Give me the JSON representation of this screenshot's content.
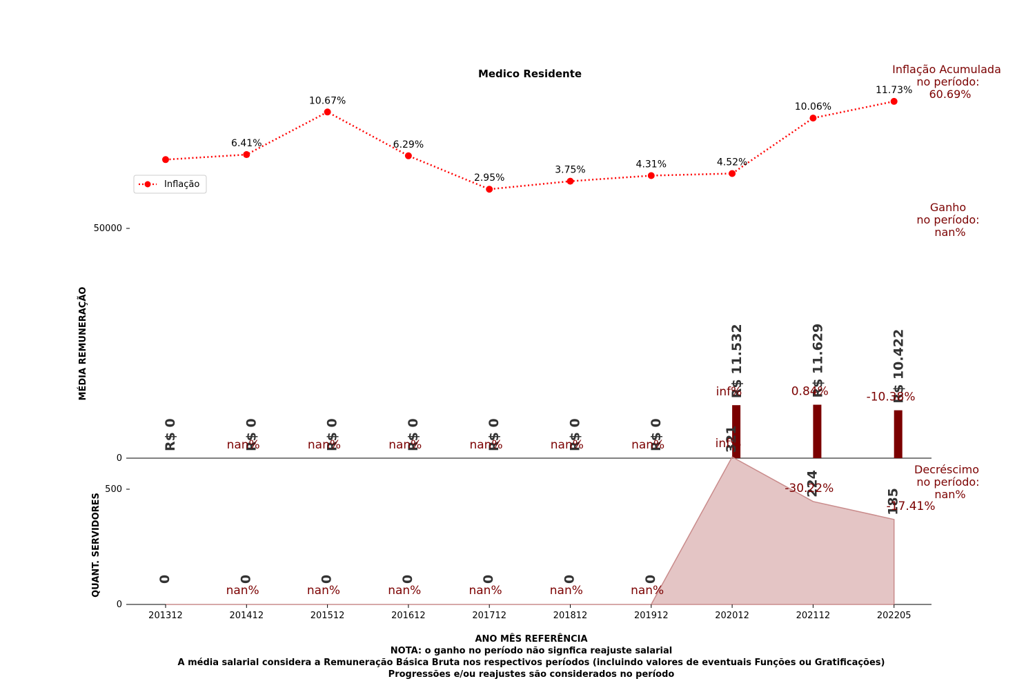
{
  "chart_data": {
    "type": "bar",
    "title": "Medico Residente",
    "categories": [
      "201312",
      "201412",
      "201512",
      "201612",
      "201712",
      "201812",
      "201912",
      "202012",
      "202112",
      "202205"
    ],
    "inflation": {
      "name": "Inflação",
      "style": "dotted-line-with-markers",
      "color": "#ff0000",
      "values": [
        5.91,
        6.41,
        10.67,
        6.29,
        2.95,
        3.75,
        4.31,
        4.52,
        10.06,
        11.73
      ],
      "labels": [
        "",
        "6.41%",
        "10.67%",
        "6.29%",
        "2.95%",
        "3.75%",
        "4.31%",
        "4.52%",
        "10.06%",
        "11.73%"
      ],
      "legend_placement": "left"
    },
    "remuneration": {
      "ylabel": "MÉDIA REMUNERAÇÃO",
      "ylim": [
        0,
        50000
      ],
      "yticks": [
        "0",
        "50000"
      ],
      "bar_color": "#7b0000",
      "values": [
        0,
        0,
        0,
        0,
        0,
        0,
        0,
        11532,
        11629,
        10422
      ],
      "value_labels": [
        "R$ 0",
        "R$ 0",
        "R$ 0",
        "R$ 0",
        "R$ 0",
        "R$ 0",
        "R$ 0",
        "R$ 11.532",
        "R$ 11.629",
        "R$ 10.422"
      ],
      "change_labels": [
        "nan%",
        "nan%",
        "nan%",
        "nan%",
        "nan%",
        "nan%",
        "inf%",
        "0.84%",
        "-10.38%"
      ]
    },
    "servers": {
      "ylabel": "QUANT. SERVIDORES",
      "ylim": [
        0,
        500
      ],
      "yticks": [
        "0",
        "500"
      ],
      "area_color": "#c98b8b",
      "values": [
        0,
        0,
        0,
        0,
        0,
        0,
        0,
        321,
        224,
        185
      ],
      "value_labels": [
        "0",
        "0",
        "0",
        "0",
        "0",
        "0",
        "0",
        "321",
        "224",
        "185"
      ],
      "change_labels": [
        "nan%",
        "nan%",
        "nan%",
        "nan%",
        "nan%",
        "nan%",
        "inf%",
        "-30.22%",
        "-17.41%"
      ]
    },
    "xlabel": "ANO MÊS REFERÊNCIA",
    "side_notes": {
      "inflation": [
        "Inflação Acumulada",
        "no período:",
        "60.69%"
      ],
      "gain": [
        "Ganho",
        "no período:",
        "nan%"
      ],
      "decrease": [
        "Decréscimo",
        "no período:",
        "nan%"
      ]
    },
    "notes": [
      "NOTA: o ganho no período não signfica reajuste salarial",
      "A média salarial considera a Remuneração Básica Bruta nos respectivos períodos (incluindo valores de eventuais Funções ou Gratificações)",
      "Progressões e/ou reajustes são considerados no período"
    ]
  }
}
